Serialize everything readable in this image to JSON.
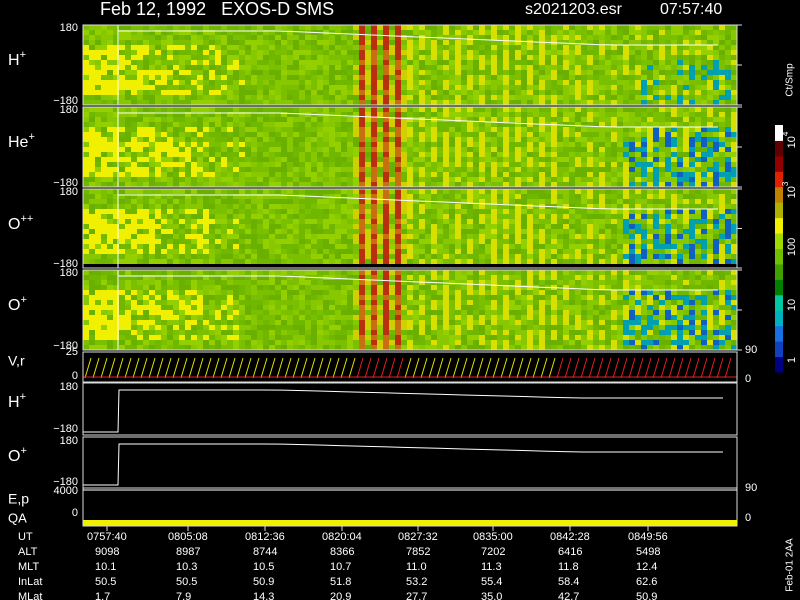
{
  "header": {
    "title": "Feb 12, 1992   EXOS-D SMS",
    "file": "s2021203.esr",
    "time": "07:57:40"
  },
  "panels": [
    {
      "label": {
        "base": "H",
        "sup": "+"
      },
      "top": "180",
      "bottom": "−180"
    },
    {
      "label": {
        "base": "He",
        "sup": "+"
      },
      "top": "180",
      "bottom": "−180"
    },
    {
      "label": {
        "base": "O",
        "sup": "++"
      },
      "top": "180",
      "bottom": "−180"
    },
    {
      "label": {
        "base": "O",
        "sup": "+"
      },
      "top": "180",
      "bottom": "−180"
    }
  ],
  "vr": {
    "label": "V,r",
    "left_top": "25",
    "left_bottom": "0",
    "right_top": "90",
    "right_bottom": "0"
  },
  "line_panels": [
    {
      "label": {
        "base": "H",
        "sup": "+"
      },
      "top": "180",
      "bottom": "−180"
    },
    {
      "label": {
        "base": "O",
        "sup": "+"
      },
      "top": "180",
      "bottom": "−180"
    }
  ],
  "ep": {
    "label": "E,p",
    "left": "4000",
    "right": "90"
  },
  "qa": {
    "label": "QA",
    "left": "0",
    "right": "0"
  },
  "colorbar": {
    "unit": "Ct/Smp",
    "labels": [
      {
        "base": "10",
        "sup": "4"
      },
      {
        "base": "10",
        "sup": "3"
      },
      {
        "base": "100"
      },
      {
        "base": "10"
      },
      {
        "base": "1"
      }
    ]
  },
  "table": {
    "rows": [
      {
        "name": "UT",
        "values": [
          "0757:40",
          "0805:08",
          "0812:36",
          "0820:04",
          "0827:32",
          "0835:00",
          "0842:28",
          "0849:56"
        ]
      },
      {
        "name": "ALT",
        "values": [
          "9098",
          "8987",
          "8744",
          "8366",
          "7852",
          "7202",
          "6416",
          "5498"
        ]
      },
      {
        "name": "MLT",
        "values": [
          "10.1",
          "10.3",
          "10.5",
          "10.7",
          "11.0",
          "11.3",
          "11.8",
          "12.4"
        ]
      },
      {
        "name": "InLat",
        "values": [
          "50.5",
          "50.5",
          "50.9",
          "51.8",
          "53.2",
          "55.4",
          "58.4",
          "62.6"
        ]
      },
      {
        "name": "MLat",
        "values": [
          "1.7",
          "7.9",
          "14.3",
          "20.9",
          "27.7",
          "35.0",
          "42.7",
          "50.9"
        ]
      }
    ]
  },
  "footer": "Feb-01 2AA"
}
